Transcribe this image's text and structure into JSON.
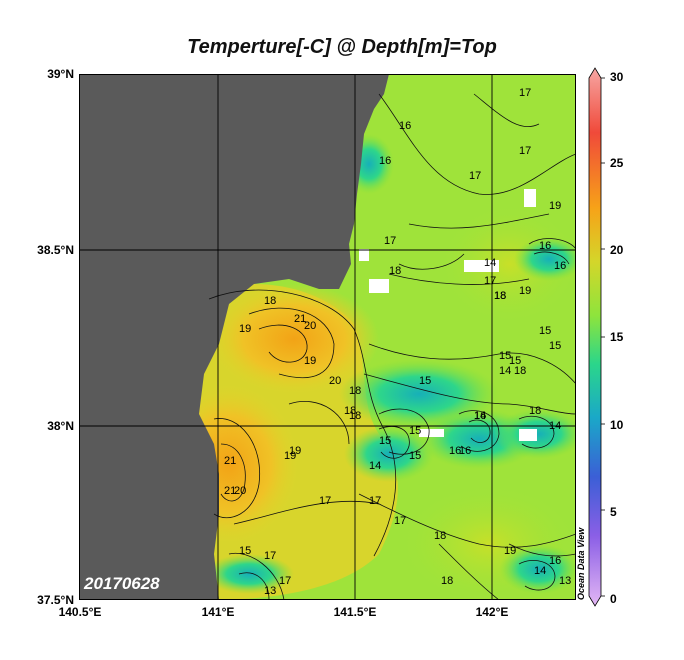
{
  "title": "Temperture[-C] @ Depth[m]=Top",
  "date_label": "20170628",
  "watermark": "Ocean Data View",
  "lat_ticks": [
    "39°N",
    "38.5°N",
    "38°N",
    "37.5°N"
  ],
  "lon_ticks": [
    "140.5°E",
    "141°E",
    "141.5°E",
    "142°E"
  ],
  "colorbar": {
    "ticks": [
      "30",
      "25",
      "20",
      "15",
      "10",
      "5",
      "0"
    ],
    "colors": [
      "#f7a7a4",
      "#f04a3a",
      "#f7a218",
      "#d4d62a",
      "#8ee43c",
      "#2bd68a",
      "#1aa8c8",
      "#3b5fd6",
      "#8b5fe6",
      "#e3b7f4"
    ]
  },
  "land_color": "#5a5a5a",
  "contour_labels": [
    "17",
    "16",
    "17",
    "19",
    "17",
    "16",
    "14",
    "16",
    "21",
    "18",
    "17",
    "19",
    "18",
    "19",
    "21",
    "20",
    "18",
    "19",
    "20",
    "15",
    "15",
    "18",
    "18",
    "19",
    "17",
    "14",
    "16",
    "21",
    "19",
    "20",
    "18",
    "14",
    "15",
    "15",
    "16",
    "15",
    "17",
    "18",
    "16",
    "14",
    "17",
    "18",
    "18",
    "19",
    "18",
    "17",
    "15",
    "13",
    "16",
    "14",
    "17",
    "18",
    "16",
    "15",
    "17",
    "15",
    "14",
    "15",
    "13"
  ]
}
